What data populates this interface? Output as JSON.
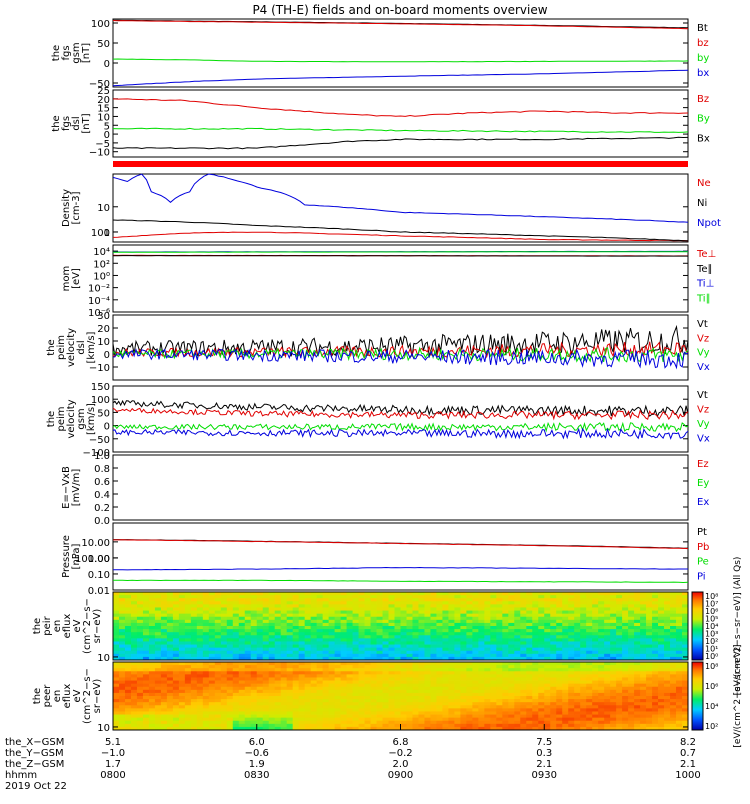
{
  "title": "P4 (TH-E) fields and on-board moments overview",
  "colors": {
    "black": "#000000",
    "red": "#e00000",
    "green": "#00dd00",
    "blue": "#0000dd"
  },
  "chart_data": [
    {
      "id": "fgs-gsm",
      "type": "line",
      "ylabel": [
        "the",
        "fgs",
        "gsm",
        "[nT]"
      ],
      "ylim": [
        -60,
        110
      ],
      "yticks": [
        "100",
        "50",
        "0",
        "−50"
      ],
      "series": [
        {
          "name": "Bt",
          "color": "black",
          "x": [
            800,
            830,
            900,
            930,
            1000
          ],
          "y": [
            107,
            103,
            99,
            94,
            88
          ]
        },
        {
          "name": "bz",
          "color": "red",
          "x": [
            800,
            830,
            900,
            930,
            1000
          ],
          "y": [
            106,
            102,
            98,
            93,
            86
          ]
        },
        {
          "name": "by",
          "color": "green",
          "x": [
            800,
            815,
            830,
            900,
            930,
            1000
          ],
          "y": [
            10,
            8,
            4,
            3,
            4,
            5
          ]
        },
        {
          "name": "bx",
          "color": "blue",
          "x": [
            800,
            815,
            830,
            900,
            930,
            1000
          ],
          "y": [
            -57,
            -47,
            -40,
            -33,
            -27,
            -18
          ]
        }
      ]
    },
    {
      "id": "fgs-dsl",
      "type": "line",
      "ylabel": [
        "the",
        "fgs",
        "dsl",
        "[nT]"
      ],
      "ylim": [
        -13,
        25
      ],
      "yticks": [
        "25",
        "20",
        "15",
        "10",
        "5",
        "0",
        "−5",
        "−10"
      ],
      "series": [
        {
          "name": "Bz",
          "color": "red",
          "x": [
            800,
            815,
            830,
            840,
            850,
            900,
            915,
            930,
            945,
            1000
          ],
          "y": [
            20,
            19,
            15,
            13,
            11,
            10,
            12,
            13,
            12,
            12
          ]
        },
        {
          "name": "By",
          "color": "green",
          "x": [
            800,
            830,
            900,
            1000
          ],
          "y": [
            3,
            3,
            2,
            1
          ]
        },
        {
          "name": "Bx",
          "color": "black",
          "x": [
            800,
            830,
            850,
            900,
            930,
            1000
          ],
          "y": [
            -8,
            -8,
            -4,
            -3,
            -3,
            -2
          ]
        }
      ]
    },
    {
      "id": "density",
      "type": "line",
      "ylabel": [
        "Density",
        "[cm-3]"
      ],
      "log": true,
      "ylim": [
        0.4,
        200
      ],
      "yticks": [
        "100",
        "10",
        "1"
      ],
      "series": [
        {
          "name": "Ne",
          "color": "red",
          "x": [
            800,
            815,
            830,
            900,
            930,
            1000
          ],
          "y": [
            0.6,
            0.9,
            1.0,
            0.7,
            0.5,
            0.45
          ]
        },
        {
          "name": "Ni",
          "color": "black",
          "x": [
            800,
            815,
            830,
            900,
            930,
            1000
          ],
          "y": [
            3.0,
            2.5,
            1.8,
            1.0,
            0.7,
            0.45
          ]
        },
        {
          "name": "Npot",
          "color": "blue",
          "x": [
            800,
            803,
            806,
            808,
            812,
            816,
            820,
            825,
            830,
            840,
            900,
            930,
            1000
          ],
          "y": [
            150,
            100,
            200,
            40,
            15,
            40,
            200,
            120,
            60,
            12,
            6,
            4,
            2.4
          ]
        }
      ]
    },
    {
      "id": "temperature",
      "type": "line",
      "ylabel": [
        "mom",
        "[eV]"
      ],
      "log": true,
      "ylim": [
        1e-06,
        100000
      ],
      "yticks": [
        "10⁴",
        "10²",
        "10⁰",
        "10⁻²",
        "10⁻⁴",
        "10⁻⁶"
      ],
      "series": [
        {
          "name": "Te⊥",
          "color": "red",
          "x": [
            800,
            1000
          ],
          "y": [
            2000,
            1600
          ]
        },
        {
          "name": "Te∥",
          "color": "black",
          "x": [
            800,
            1000
          ],
          "y": [
            1800,
            1500
          ]
        },
        {
          "name": "Ti⊥",
          "color": "blue",
          "x": [
            800,
            1000
          ],
          "y": [
            7000,
            9000
          ]
        },
        {
          "name": "Ti∥",
          "color": "green",
          "x": [
            800,
            1000
          ],
          "y": [
            6500,
            8000
          ]
        }
      ]
    },
    {
      "id": "peim-dsl",
      "type": "line",
      "ylabel": [
        "the",
        "peim",
        "velocity",
        "dsl",
        "[km/s]"
      ],
      "ylim": [
        -20,
        30
      ],
      "yticks": [
        "30",
        "20",
        "10",
        "0",
        "−10"
      ],
      "series": [
        {
          "name": "Vt",
          "color": "black",
          "x": [
            800,
            900,
            1000
          ],
          "y": [
            4,
            6,
            11
          ]
        },
        {
          "name": "Vz",
          "color": "red",
          "x": [
            800,
            900,
            1000
          ],
          "y": [
            1,
            2,
            4
          ]
        },
        {
          "name": "Vy",
          "color": "green",
          "x": [
            800,
            900,
            1000
          ],
          "y": [
            0,
            0,
            -1
          ]
        },
        {
          "name": "Vx",
          "color": "blue",
          "x": [
            800,
            900,
            1000
          ],
          "y": [
            0,
            -2,
            -4
          ]
        }
      ]
    },
    {
      "id": "peim-gsm",
      "type": "line",
      "ylabel": [
        "the",
        "peim",
        "velocity",
        "gsm",
        "[km/s]"
      ],
      "ylim": [
        -100,
        150
      ],
      "yticks": [
        "150",
        "100",
        "50",
        "0",
        "−50",
        "−100"
      ],
      "series": [
        {
          "name": "Vt",
          "color": "black",
          "x": [
            800,
            830,
            900,
            1000
          ],
          "y": [
            85,
            70,
            60,
            55
          ]
        },
        {
          "name": "Vz",
          "color": "red",
          "x": [
            800,
            830,
            900,
            1000
          ],
          "y": [
            60,
            45,
            40,
            40
          ]
        },
        {
          "name": "Vy",
          "color": "green",
          "x": [
            800,
            900,
            1000
          ],
          "y": [
            -5,
            -5,
            -5
          ]
        },
        {
          "name": "Vx",
          "color": "blue",
          "x": [
            800,
            900,
            1000
          ],
          "y": [
            -25,
            -30,
            -30
          ]
        }
      ]
    },
    {
      "id": "efield",
      "type": "line",
      "ylabel": [
        "E=−VxB",
        "[mV/m]"
      ],
      "ylim": [
        0,
        1
      ],
      "yticks": [
        "1.0",
        "0.8",
        "0.6",
        "0.4",
        "0.2",
        "0.0"
      ],
      "series": [
        {
          "name": "Ez",
          "color": "red",
          "x": [],
          "y": []
        },
        {
          "name": "Ey",
          "color": "green",
          "x": [],
          "y": []
        },
        {
          "name": "Ex",
          "color": "blue",
          "x": [],
          "y": []
        }
      ]
    },
    {
      "id": "pressure",
      "type": "line",
      "ylabel": [
        "Pressure",
        "[nPa]"
      ],
      "log": true,
      "ylim": [
        0.01,
        150
      ],
      "yticks": [
        "100.00",
        "10.00",
        "1.00",
        "0.10",
        "0.01"
      ],
      "series": [
        {
          "name": "Pt",
          "color": "black",
          "x": [
            800,
            830,
            900,
            930,
            1000
          ],
          "y": [
            14,
            11,
            8,
            6,
            4
          ]
        },
        {
          "name": "Pb",
          "color": "red",
          "x": [
            800,
            830,
            900,
            930,
            1000
          ],
          "y": [
            13.5,
            10.6,
            7.8,
            5.8,
            3.8
          ]
        },
        {
          "name": "Pe",
          "color": "green",
          "x": [
            800,
            830,
            900,
            1000
          ],
          "y": [
            0.04,
            0.04,
            0.035,
            0.03
          ]
        },
        {
          "name": "Pi",
          "color": "blue",
          "x": [
            800,
            830,
            900,
            1000
          ],
          "y": [
            0.18,
            0.2,
            0.25,
            0.2
          ]
        }
      ]
    },
    {
      "id": "peir-flux",
      "type": "heatmap",
      "ylabel": [
        "the",
        "peir",
        "en",
        "eflux",
        "eV",
        "(cm^2−s−",
        "sr−eV)"
      ],
      "log": true,
      "ylim": [
        7,
        20000
      ],
      "yticks": [
        "10000",
        "1000",
        "100",
        "10"
      ],
      "zlabel": "[eV/(cm^2−s−sr−eV)] (All Qs)",
      "zticks": [
        "10⁸",
        "10⁷",
        "10⁶",
        "10⁵",
        "10⁴",
        "10³",
        "10²",
        "10¹",
        "10⁰"
      ]
    },
    {
      "id": "peer-flux",
      "type": "heatmap",
      "ylabel": [
        "the",
        "peer",
        "en",
        "eflux",
        "eV",
        "(cm^2−s−",
        "sr−eV)"
      ],
      "log": true,
      "ylim": [
        7,
        20000
      ],
      "yticks": [
        "10000",
        "1000",
        "100",
        "10"
      ],
      "zlabel": "[eV/(cm^2−s−sr−eV)]",
      "zticks": [
        "10⁸",
        "10⁶",
        "10⁴",
        "10²"
      ]
    }
  ],
  "xaxis": {
    "rows": [
      {
        "label": "the_X−GSM",
        "values": [
          "5.1",
          "6.0",
          "6.8",
          "7.5",
          "8.2"
        ]
      },
      {
        "label": "the_Y−GSM",
        "values": [
          "−1.0",
          "−0.6",
          "−0.2",
          "0.3",
          "0.7"
        ]
      },
      {
        "label": "the_Z−GSM",
        "values": [
          "1.7",
          "1.9",
          "2.0",
          "2.1",
          "2.1"
        ]
      },
      {
        "label": "hhmm",
        "values": [
          "0800",
          "0830",
          "0900",
          "0930",
          "1000"
        ]
      }
    ],
    "date": "2019 Oct 22"
  }
}
